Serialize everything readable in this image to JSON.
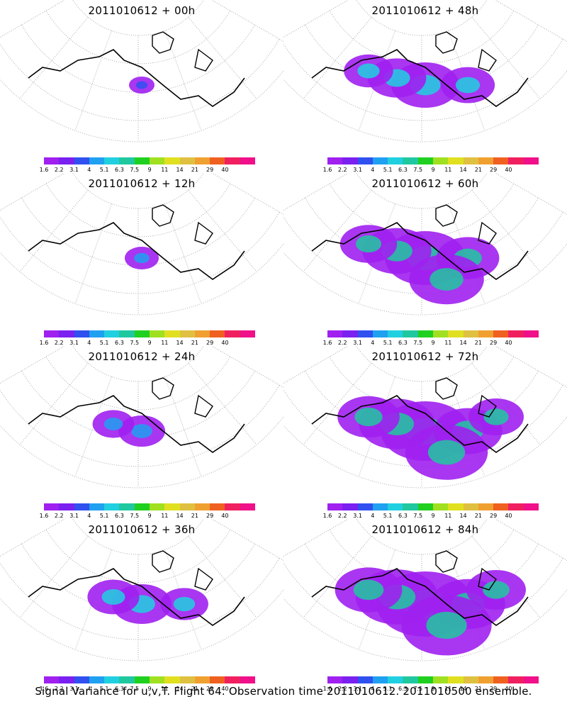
{
  "footer": "Signal Variance for u,v,T. Flight 64. Observation time 2011010612. 2011010500 ensemble.",
  "colorbar": {
    "labels": [
      "1.6",
      "2.2",
      "3.1",
      "4",
      "5.1",
      "6.3",
      "7.5",
      "9",
      "11",
      "14",
      "21",
      "29",
      "40"
    ],
    "colors": [
      "#a020f0",
      "#7a20f0",
      "#3050f0",
      "#20a0f0",
      "#20d0e0",
      "#20c8a0",
      "#20d020",
      "#a0e020",
      "#e0e020",
      "#e0c040",
      "#f0a030",
      "#f06020",
      "#f02060",
      "#f0108a"
    ]
  },
  "panels": [
    {
      "title": "2011010612 + 00h",
      "level": 0.05
    },
    {
      "title": "2011010612 + 48h",
      "level": 0.55
    },
    {
      "title": "2011010612 + 12h",
      "level": 0.15
    },
    {
      "title": "2011010612 + 60h",
      "level": 0.7
    },
    {
      "title": "2011010612 + 24h",
      "level": 0.3
    },
    {
      "title": "2011010612 + 72h",
      "level": 0.8
    },
    {
      "title": "2011010612 + 36h",
      "level": 0.45
    },
    {
      "title": "2011010612 + 84h",
      "level": 0.9
    }
  ]
}
